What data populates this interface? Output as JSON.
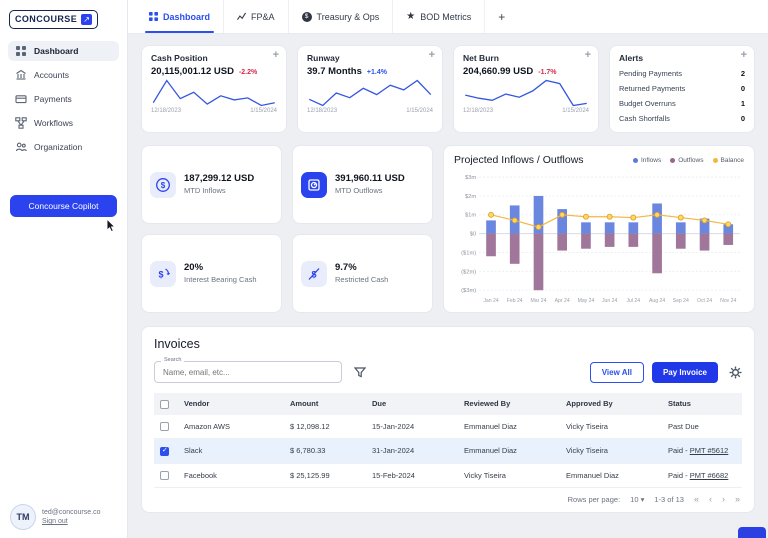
{
  "brand": {
    "name": "CONCOURSE",
    "accent": "#2b43ee"
  },
  "icons": {
    "logo_arrow": "↗",
    "star": "★",
    "expand": "+",
    "dollar": "$",
    "caret_down": "▾",
    "first": "«",
    "prev": "‹",
    "next": "›",
    "last": "»"
  },
  "sidebar": {
    "items": [
      {
        "label": "Dashboard",
        "active": true
      },
      {
        "label": "Accounts",
        "active": false
      },
      {
        "label": "Payments",
        "active": false
      },
      {
        "label": "Workflows",
        "active": false
      },
      {
        "label": "Organization",
        "active": false
      }
    ],
    "copilot_label": "Concourse Copilot",
    "user_initials": "TM",
    "user_email": "ted@concourse.co",
    "signout_label": "Sign out"
  },
  "tabs": {
    "dashboard": "Dashboard",
    "fpa": "FP&A",
    "treasury": "Treasury & Ops",
    "bod": "BOD Metrics",
    "add": "+"
  },
  "cards": {
    "cash": {
      "title": "Cash Position",
      "value": "20,115,001.12 USD",
      "delta": "-2.2%",
      "start": "12/18/2023",
      "end": "1/15/2024"
    },
    "runway": {
      "title": "Runway",
      "value": "39.7 Months",
      "delta": "+1.4%",
      "start": "12/18/2023",
      "end": "1/15/2024"
    },
    "netburn": {
      "title": "Net Burn",
      "value": "204,660.99 USD",
      "delta": "-1.7%",
      "start": "12/18/2023",
      "end": "1/15/2024"
    },
    "alerts": {
      "title": "Alerts",
      "rows": [
        {
          "label": "Pending Payments",
          "count": "2"
        },
        {
          "label": "Returned Payments",
          "count": "0"
        },
        {
          "label": "Budget Overruns",
          "count": "1"
        },
        {
          "label": "Cash Shortfalls",
          "count": "0"
        }
      ]
    }
  },
  "tiles": [
    {
      "value": "187,299.12 USD",
      "label": "MTD Inflows"
    },
    {
      "value": "391,960.11 USD",
      "label": "MTD Outflows"
    },
    {
      "value": "20%",
      "label": "Interest Bearing Cash"
    },
    {
      "value": "9.7%",
      "label": "Restricted Cash"
    }
  ],
  "chart_data": [
    {
      "type": "bar",
      "title": "Projected Inflows / Outflows",
      "categories": [
        "Jan 24",
        "Feb 24",
        "Mar 24",
        "Apr 24",
        "May 24",
        "Jun 24",
        "Jul 24",
        "Aug 24",
        "Sep 24",
        "Oct 24",
        "Nov 24"
      ],
      "series": [
        {
          "name": "Inflows",
          "type": "bar",
          "color": "#5b79da",
          "values": [
            0.7,
            1.5,
            2.0,
            1.3,
            0.6,
            0.6,
            0.6,
            1.6,
            0.6,
            0.8,
            0.5
          ]
        },
        {
          "name": "Outflows",
          "type": "bar",
          "color": "#96688f",
          "values": [
            -1.2,
            -1.6,
            -3.0,
            -0.9,
            -0.8,
            -0.7,
            -0.7,
            -2.1,
            -0.8,
            -0.9,
            -0.6
          ]
        },
        {
          "name": "Balance",
          "type": "line",
          "color": "#f3b73e",
          "values": [
            1.0,
            0.7,
            0.35,
            1.0,
            0.9,
            0.9,
            0.85,
            1.0,
            0.85,
            0.7,
            0.5
          ]
        }
      ],
      "ylim": [
        -3,
        3
      ],
      "ytick_labels": [
        "$3m",
        "$2m",
        "$1m",
        "$0",
        "($1m)",
        "($2m)",
        "($3m)"
      ],
      "legend_position": "top-right",
      "grid": true
    },
    {
      "type": "line",
      "name": "cash-position-sparkline",
      "color": "#3556e0",
      "values": [
        40,
        72,
        46,
        55,
        38,
        50,
        44,
        47,
        36,
        40
      ]
    },
    {
      "type": "line",
      "name": "runway-sparkline",
      "color": "#3556e0",
      "values": [
        46,
        38,
        54,
        48,
        60,
        52,
        64,
        58,
        70,
        52
      ]
    },
    {
      "type": "line",
      "name": "netburn-sparkline",
      "color": "#3556e0",
      "values": [
        50,
        44,
        40,
        52,
        46,
        58,
        78,
        72,
        30,
        34
      ]
    }
  ],
  "invoices": {
    "title": "Invoices",
    "search_label": "Search",
    "search_placeholder": "Name, email, etc...",
    "view_all_label": "View All",
    "pay_invoice_label": "Pay Invoice",
    "columns": [
      "Vendor",
      "Amount",
      "Due",
      "Reviewed By",
      "Approved By",
      "Status"
    ],
    "rows": [
      {
        "vendor": "Amazon AWS",
        "amount": "$ 12,098.12",
        "due": "15-Jan-2024",
        "reviewed": "Emmanuel Diaz",
        "approved": "Vicky Tiseira",
        "status": "Past Due",
        "status_link": "",
        "checked": false
      },
      {
        "vendor": "Slack",
        "amount": "$ 6,780.33",
        "due": "31-Jan-2024",
        "reviewed": "Emmanuel Diaz",
        "approved": "Vicky Tiseira",
        "status": "Paid - ",
        "status_link": "PMT #5612",
        "checked": true
      },
      {
        "vendor": "Facebook",
        "amount": "$ 25,125.99",
        "due": "15-Feb-2024",
        "reviewed": "Vicky Tiseira",
        "approved": "Emmanuel Diaz",
        "status": "Paid - ",
        "status_link": "PMT #6682",
        "checked": false
      }
    ],
    "pagination": {
      "rows_per_page_label": "Rows per page:",
      "rows_per_page_value": "10",
      "range_label": "1-3 of 13"
    }
  }
}
